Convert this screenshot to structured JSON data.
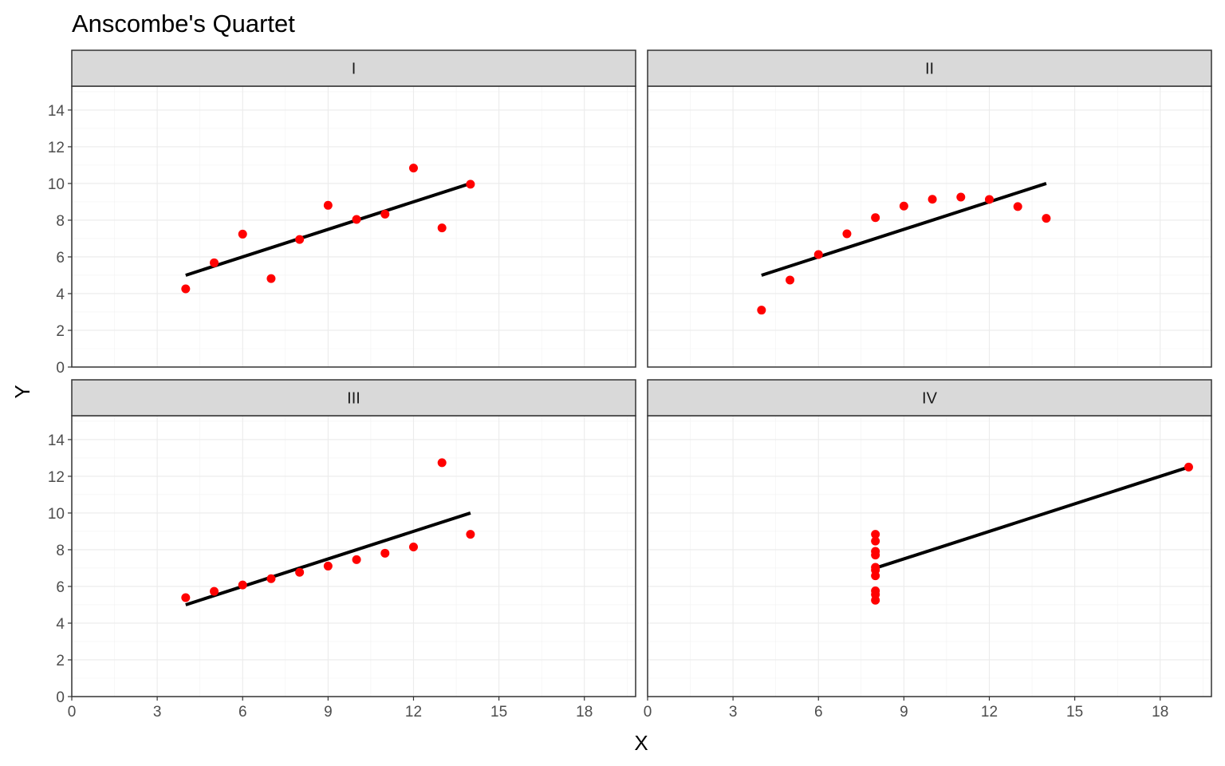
{
  "chart_data": {
    "type": "scatter",
    "title": "Anscombe's Quartet",
    "xlabel": "X",
    "ylabel": "Y",
    "xlim": [
      0,
      19.8
    ],
    "ylim": [
      0,
      15.3
    ],
    "x_ticks": [
      0,
      3,
      6,
      9,
      12,
      15,
      18
    ],
    "y_ticks": [
      0,
      2,
      4,
      6,
      8,
      10,
      12,
      14
    ],
    "grid": true,
    "point_color": "#ff0000",
    "line_color": "#000000",
    "strip_color": "#d9d9d9",
    "panels": [
      {
        "name": "I",
        "x": [
          10,
          8,
          13,
          9,
          11,
          14,
          6,
          4,
          12,
          7,
          5
        ],
        "y": [
          8.04,
          6.95,
          7.58,
          8.81,
          8.33,
          9.96,
          7.24,
          4.26,
          10.84,
          4.82,
          5.68
        ],
        "fit": {
          "x": [
            4,
            14
          ],
          "y": [
            5.0,
            10.0
          ]
        }
      },
      {
        "name": "II",
        "x": [
          10,
          8,
          13,
          9,
          11,
          14,
          6,
          4,
          12,
          7,
          5
        ],
        "y": [
          9.14,
          8.14,
          8.74,
          8.77,
          9.26,
          8.1,
          6.13,
          3.1,
          9.13,
          7.26,
          4.74
        ],
        "fit": {
          "x": [
            4,
            14
          ],
          "y": [
            5.0,
            10.0
          ]
        }
      },
      {
        "name": "III",
        "x": [
          10,
          8,
          13,
          9,
          11,
          14,
          6,
          4,
          12,
          7,
          5
        ],
        "y": [
          7.46,
          6.77,
          12.74,
          7.11,
          7.81,
          8.84,
          6.08,
          5.39,
          8.15,
          6.42,
          5.73
        ],
        "fit": {
          "x": [
            4,
            14
          ],
          "y": [
            5.0,
            10.0
          ]
        }
      },
      {
        "name": "IV",
        "x": [
          8,
          8,
          8,
          8,
          8,
          8,
          8,
          19,
          8,
          8,
          8
        ],
        "y": [
          6.58,
          5.76,
          7.71,
          8.84,
          8.47,
          7.04,
          5.25,
          12.5,
          5.56,
          7.91,
          6.89
        ],
        "fit": {
          "x": [
            8,
            19
          ],
          "y": [
            7.0,
            12.5
          ]
        }
      }
    ]
  }
}
